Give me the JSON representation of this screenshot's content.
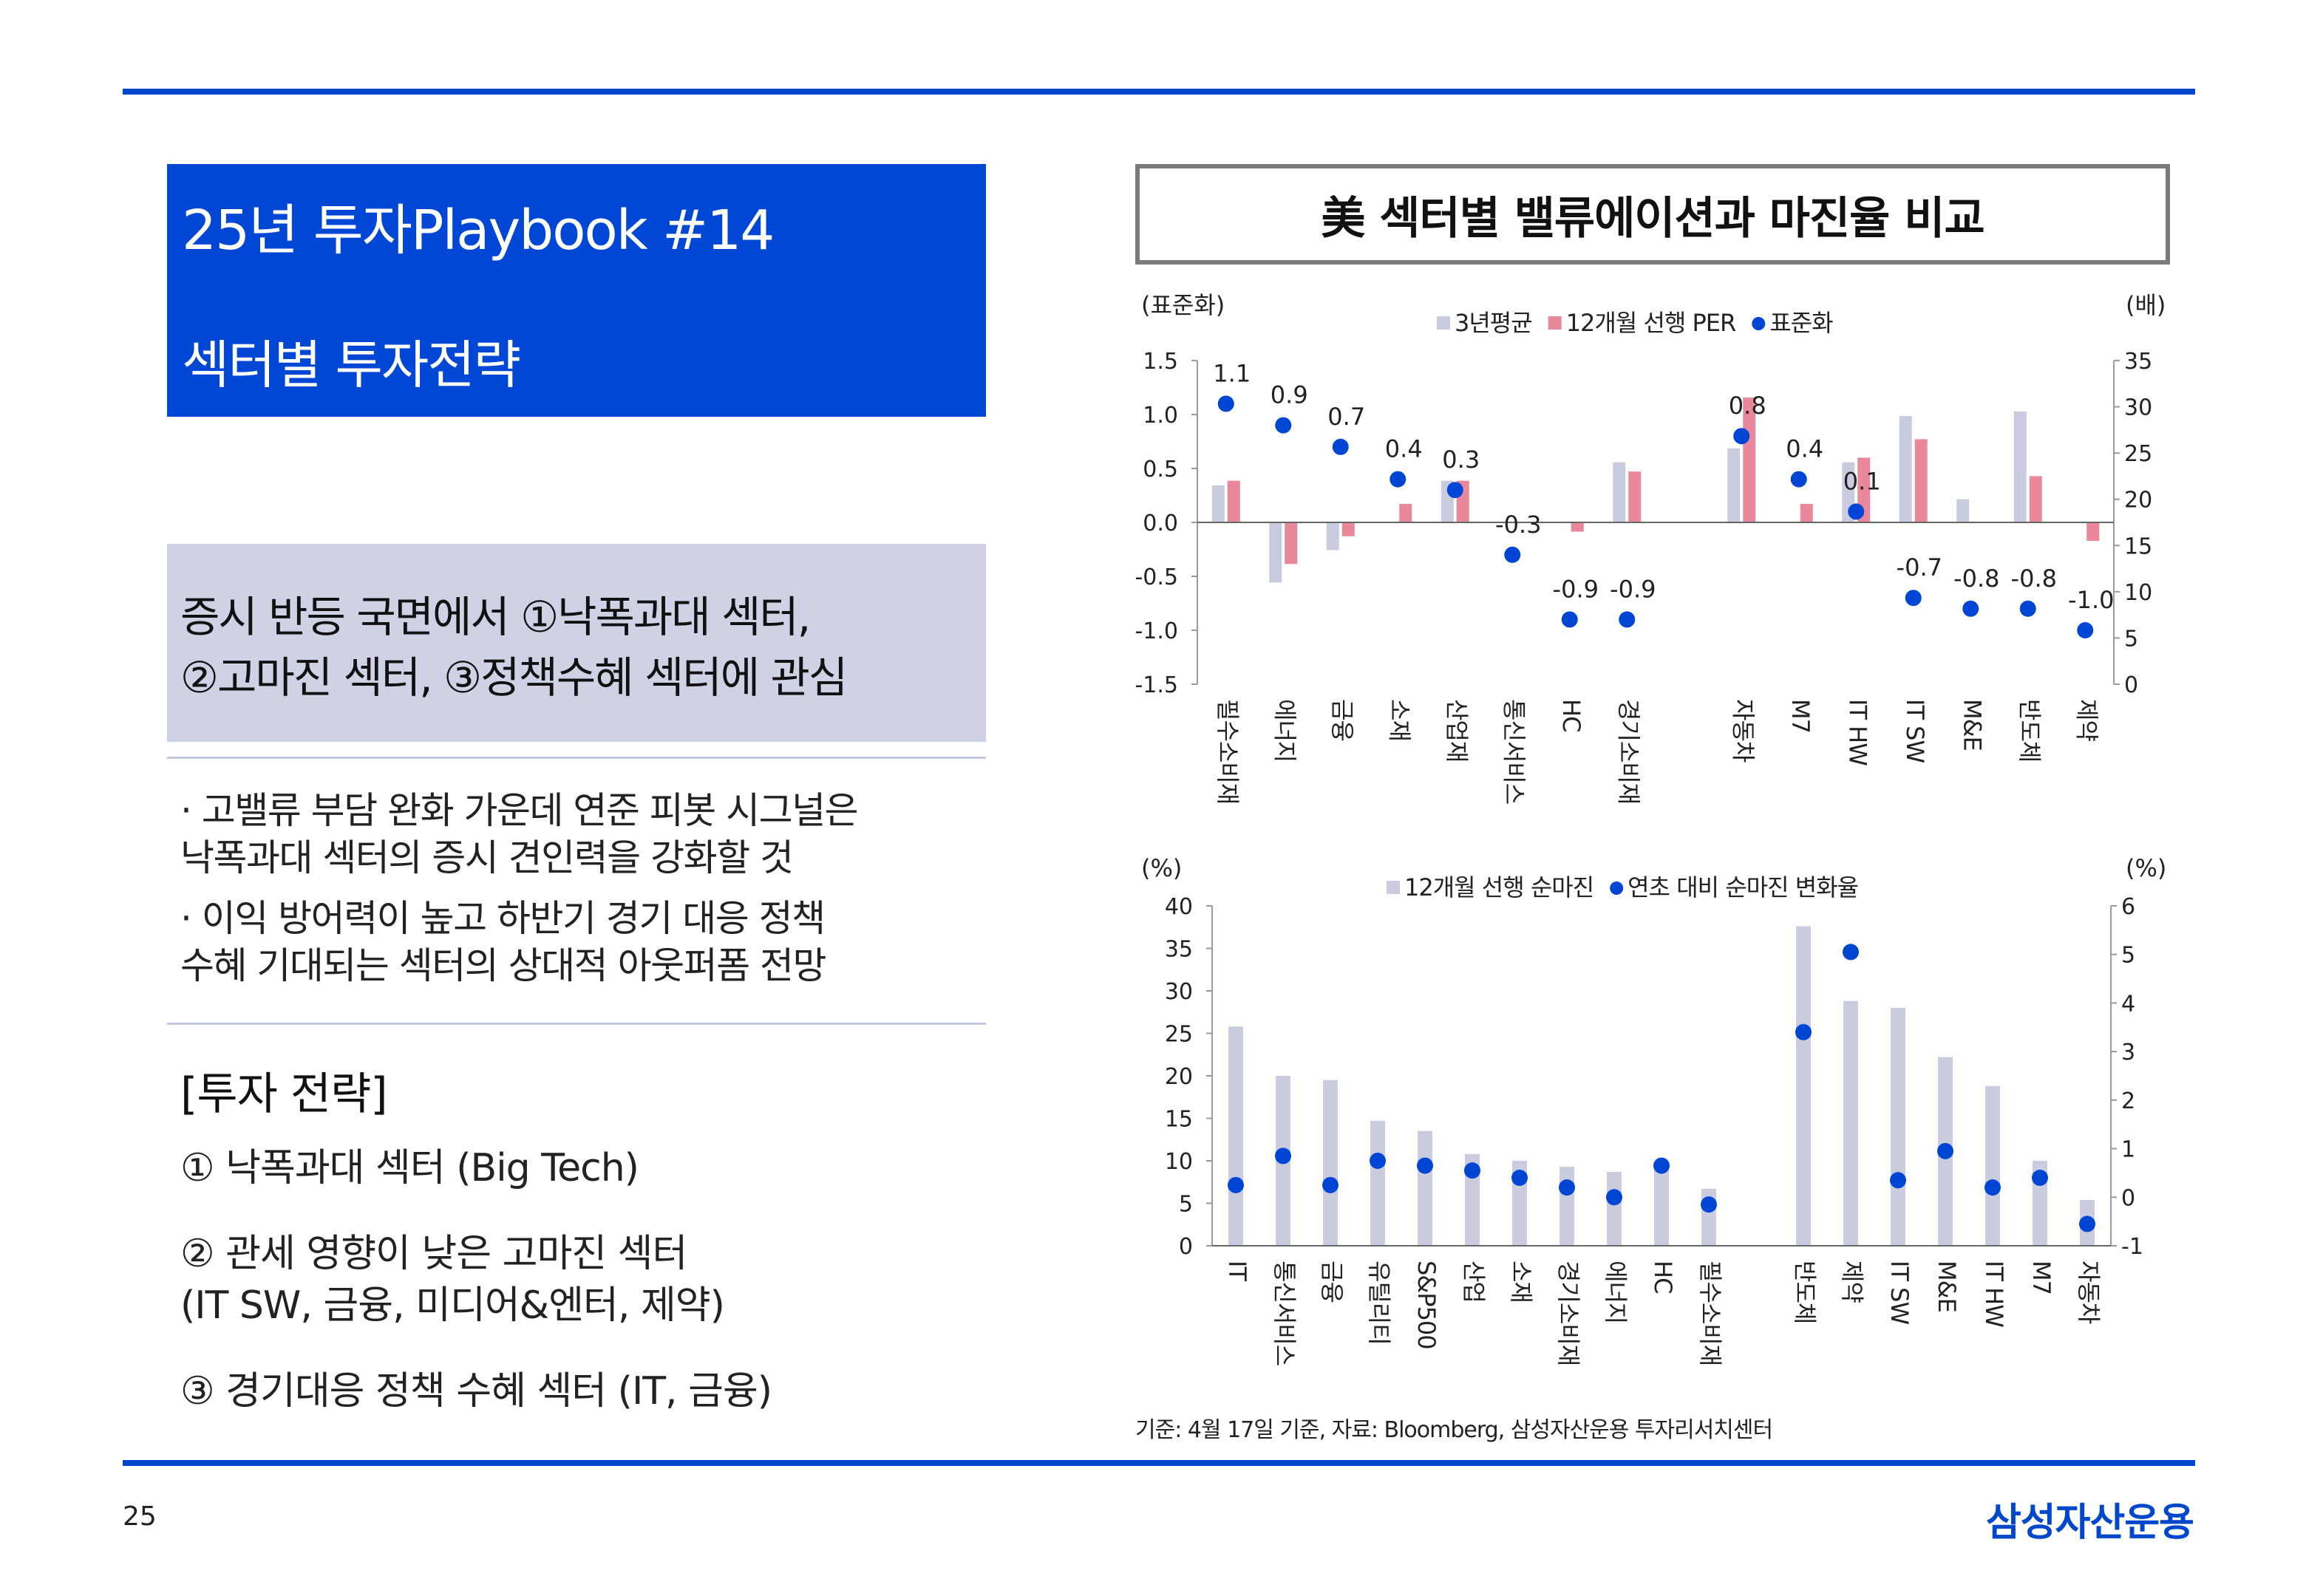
{
  "slide": {
    "title": "25년 투자Playbook #14",
    "subtitle": "섹터별 투자전략",
    "highlight_lines": [
      "증시 반등 국면에서 ①낙폭과대 섹터,",
      "②고마진 섹터, ③정책수혜 섹터에 관심"
    ],
    "bullets": [
      [
        "· 고밸류 부담 완화 가운데 연준 피봇 시그널은",
        "  낙폭과대 섹터의 증시 견인력을 강화할 것"
      ],
      [
        "· 이익 방어력이 높고 하반기 경기 대응 정책",
        "  수혜 기대되는 섹터의 상대적 아웃퍼폼 전망"
      ]
    ],
    "strategy_heading": "[투자 전략]",
    "strategies": [
      [
        "① 낙폭과대 섹터 (Big Tech)"
      ],
      [
        "② 관세 영향이 낮은 고마진 섹터",
        "    (IT SW, 금융, 미디어&엔터, 제약)"
      ],
      [
        "③ 경기대응 정책 수혜 섹터 (IT, 금융)"
      ]
    ],
    "chart_header": "美 섹터별 밸류에이션과 마진율 비교",
    "source_note": "기준: 4월 17일 기준, 자료: Bloomberg, 삼성자산운용 투자리서치센터",
    "page_number": "25",
    "brand": "삼성자산운용"
  },
  "colors": {
    "accent": "#0047cc",
    "bar_light": "#c9ccdf",
    "bar_pink": "#e9879b",
    "dot": "#0046d5"
  },
  "chart_data": [
    {
      "type": "bar",
      "title": "",
      "left_axis_label": "(표준화)",
      "right_axis_label": "(배)",
      "ylim_left": [
        -1.5,
        1.5
      ],
      "yticks_left": [
        "1.5",
        "1.0",
        "0.5",
        "0.0",
        "-0.5",
        "-1.0",
        "-1.5"
      ],
      "ylim_right": [
        0,
        35
      ],
      "yticks_right": [
        "35",
        "30",
        "25",
        "20",
        "15",
        "10",
        "5",
        "0"
      ],
      "categories": [
        "필수소비재",
        "에너지",
        "금융",
        "소재",
        "산업재",
        "통신서비스",
        "HC",
        "경기소비재",
        "",
        "자동차",
        "M7",
        "IT HW",
        "IT SW",
        "M&E",
        "반도체",
        "제약"
      ],
      "series": [
        {
          "name": "3년평균",
          "axis": "right",
          "kind": "bar",
          "values": [
            21.5,
            11,
            14.5,
            17.5,
            22,
            17.5,
            17.5,
            24,
            null,
            25.5,
            17.5,
            24,
            29,
            20,
            29.5,
            17.5
          ]
        },
        {
          "name": "12개월 선행 PER",
          "axis": "right",
          "kind": "bar",
          "values": [
            22,
            13,
            16,
            19.5,
            22,
            17.5,
            16.5,
            23,
            null,
            31,
            19.5,
            24.5,
            26.5,
            17.5,
            22.5,
            15.5
          ]
        },
        {
          "name": "표준화",
          "axis": "left",
          "kind": "dot",
          "values": [
            1.1,
            0.9,
            0.7,
            0.4,
            0.3,
            -0.3,
            -0.9,
            -0.9,
            null,
            0.8,
            0.4,
            0.1,
            -0.7,
            -0.8,
            -0.8,
            -1.0
          ]
        }
      ],
      "dot_labels": [
        "1.1",
        "0.9",
        "0.7",
        "0.4",
        "0.3",
        "-0.3",
        "-0.9",
        "-0.9",
        "",
        "0.8",
        "0.4",
        "0.1",
        "-0.7",
        "-0.8",
        "-0.8",
        "-1.0"
      ],
      "legend": [
        "3년평균",
        "12개월 선행 PER",
        "표준화"
      ],
      "legend_position": "top-center"
    },
    {
      "type": "bar",
      "title": "",
      "left_axis_label": "(%)",
      "right_axis_label": "(%)",
      "ylim_left": [
        0,
        40
      ],
      "yticks_left": [
        "40",
        "35",
        "30",
        "25",
        "20",
        "15",
        "10",
        "5",
        "0"
      ],
      "ylim_right": [
        -1,
        6
      ],
      "yticks_right": [
        "6",
        "5",
        "4",
        "3",
        "2",
        "1",
        "0",
        "-1"
      ],
      "categories": [
        "IT",
        "통신서비스",
        "금융",
        "유틸리티",
        "S&P500",
        "산업",
        "소재",
        "경기소비재",
        "에너지",
        "HC",
        "필수소비재",
        "",
        "반도체",
        "제약",
        "IT SW",
        "M&E",
        "IT HW",
        "M7",
        "자동차"
      ],
      "series": [
        {
          "name": "12개월 선행 순마진",
          "axis": "left",
          "kind": "bar",
          "values": [
            25.8,
            20,
            19.5,
            14.7,
            13.5,
            10.8,
            10,
            9.3,
            8.7,
            9.7,
            6.7,
            null,
            37.6,
            28.8,
            28,
            22.2,
            18.8,
            10,
            5.4
          ]
        },
        {
          "name": "연초 대비 순마진 변화율",
          "axis": "right",
          "kind": "dot",
          "values": [
            0.25,
            0.85,
            0.25,
            0.75,
            0.65,
            0.55,
            0.4,
            0.2,
            0.0,
            0.65,
            -0.15,
            null,
            3.4,
            5.05,
            0.35,
            0.95,
            0.2,
            0.4,
            -0.55
          ]
        }
      ],
      "legend": [
        "12개월 선행 순마진",
        "연초 대비 순마진 변화율"
      ],
      "legend_position": "top-center"
    }
  ]
}
